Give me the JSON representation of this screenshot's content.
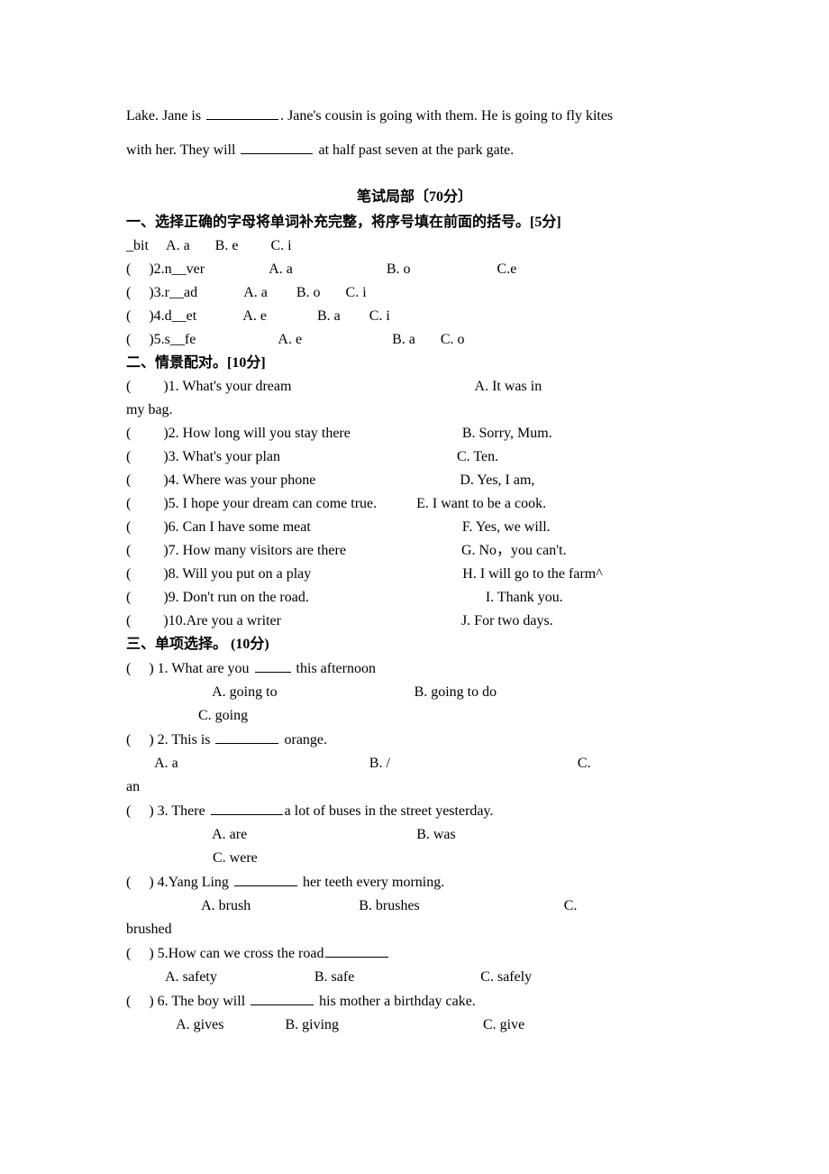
{
  "intro": {
    "text1": "Lake. Jane is ",
    "text2": ". Jane's cousin is going with them. He is going to fly kites",
    "text3": "with her. They will ",
    "text4": " at half past seven at the park gate."
  },
  "written_section_title": "笔试局部〔70分〕",
  "sec1": {
    "heading": "一、选择正确的字母将单词补充完整，将序号填在前面的括号。[5分]",
    "rows": [
      "_bit     A. a       B. e         C. i",
      "(     )2.n__ver                  A. a                          B. o                        C.e",
      "(     )3.r__ad             A. a        B. o       C. i",
      "(     )4.d__et             A. e              B. a        C. i",
      "(     )5.s__fe                       A. e                         B. a       C. o"
    ]
  },
  "sec2": {
    "heading": "二、情景配对。[10分]",
    "rows": [
      "(         )1. What's your dream                                                   A. It was in",
      "my bag.",
      "(         )2. How long will you stay there                               B. Sorry, Mum.",
      "(         )3. What's your plan                                                 C. Ten.",
      "(         )4. Where was your phone                                        D. Yes, I am,",
      "(         )5. I hope your dream can come true.           E. I want to be a cook.",
      "(         )6. Can I have some meat                                          F. Yes, we will.",
      "(         )7. How many visitors are there                                G. No，you can't.",
      "(         )8. Will you put on a play                                          H. I will go to the farm^",
      "(         )9. Don't run on the road.                                                 I. Thank you.",
      "(         )10.Are you a writer                                                  J. For two days."
    ]
  },
  "sec3": {
    "heading": "三、单项选择。 (10分)",
    "q1": {
      "stem_pre": "(     ) 1. What are you ",
      "stem_post": " this afternoon",
      "opts": "                        A. going to                                      B. going to do",
      "opts2": "                    C. going"
    },
    "q2": {
      "stem_pre": "(     ) 2. This is ",
      "stem_post": " orange.",
      "opts": "        A. a                                                     B. /                                                    C.",
      "opts2": "an"
    },
    "q3": {
      "stem_pre": "(     ) 3. There ",
      "stem_post": "a lot of buses in the street yesterday.",
      "opts": "                        A. are                                               B. was",
      "opts2": "                        C. were"
    },
    "q4": {
      "stem_pre": "(     ) 4.Yang Ling ",
      "stem_post": " her teeth every morning.",
      "opts": "                     A. brush                              B. brushes                                        C.",
      "opts2": "brushed"
    },
    "q5": {
      "stem_pre": "(     ) 5.How can we cross the road",
      "opts": "           A. safety                           B. safe                                   C. safely"
    },
    "q6": {
      "stem_pre": "(     ) 6. The boy will ",
      "stem_post": " his mother a birthday cake.",
      "opts": "              A. gives                 B. giving                                        C. give"
    }
  }
}
